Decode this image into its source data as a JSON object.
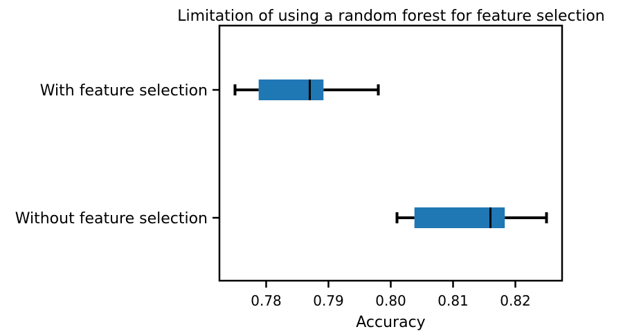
{
  "chart_data": {
    "type": "boxplot",
    "orientation": "horizontal",
    "title": "Limitation of using a random forest for feature selection",
    "xlabel": "Accuracy",
    "ylabel": "",
    "xlim": [
      0.7725,
      0.8275
    ],
    "xticks": [
      0.78,
      0.79,
      0.8,
      0.81,
      0.82
    ],
    "xtick_labels": [
      "0.78",
      "0.79",
      "0.80",
      "0.81",
      "0.82"
    ],
    "grid": false,
    "box_color": "#1f77b4",
    "categories": [
      "With feature selection",
      "Without feature selection"
    ],
    "boxes": [
      {
        "label": "With feature selection",
        "whisker_low": 0.775,
        "q1": 0.7788,
        "median": 0.787,
        "q3": 0.7892,
        "whisker_high": 0.798
      },
      {
        "label": "Without feature selection",
        "whisker_low": 0.801,
        "q1": 0.8038,
        "median": 0.816,
        "q3": 0.8183,
        "whisker_high": 0.825
      }
    ]
  }
}
